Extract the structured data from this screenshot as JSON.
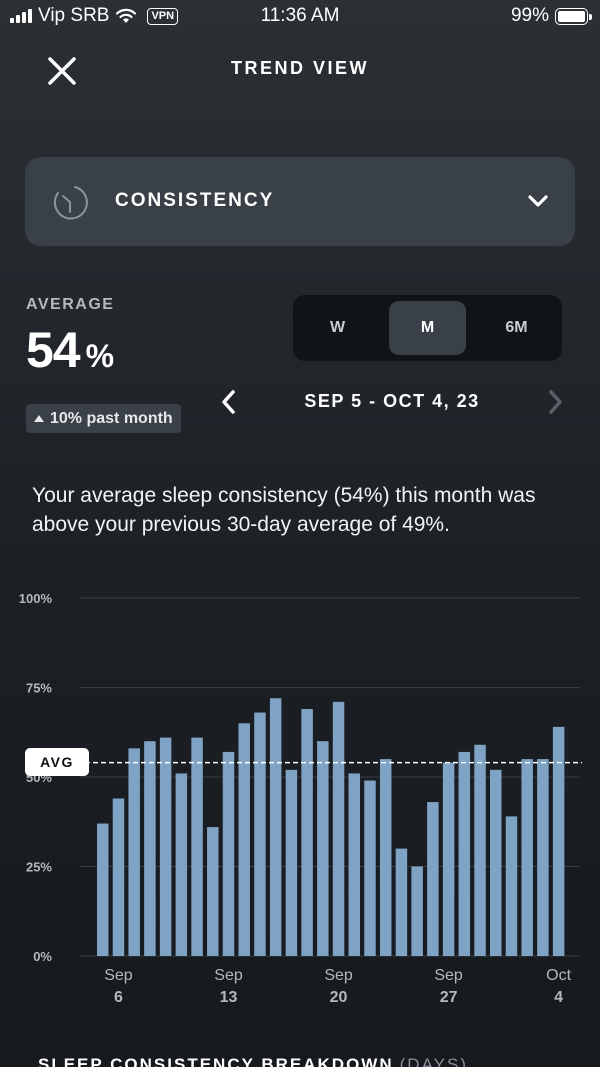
{
  "status_bar": {
    "carrier": "Vip SRB",
    "vpn": "VPN",
    "time": "11:36 AM",
    "battery": "99%",
    "icons": [
      "signal-icon",
      "wifi-icon",
      "battery-icon"
    ]
  },
  "header": {
    "title": "TREND VIEW",
    "close_icon": "close-icon"
  },
  "metric_selector": {
    "label": "CONSISTENCY",
    "icon": "consistency-clock-icon",
    "chevron": "chevron-down-icon"
  },
  "average": {
    "label": "AVERAGE",
    "value": "54",
    "unit": "%",
    "trend": "10% past month",
    "trend_direction": "up"
  },
  "period_toggle": {
    "options": [
      "W",
      "M",
      "6M"
    ],
    "selected": "M"
  },
  "date_range": {
    "label": "SEP 5 - OCT 4, 23"
  },
  "summary": {
    "text": "Your average sleep consistency (54%) this month was above your previous 30-day average of 49%."
  },
  "chart_data": {
    "type": "bar",
    "bar_color": "#7ea3c4",
    "avg_line_color": "#ffffff",
    "ylim": [
      0,
      100
    ],
    "y_ticks": [
      {
        "value": 100,
        "label": "100%"
      },
      {
        "value": 75,
        "label": "75%"
      },
      {
        "value": 50,
        "label": "50%"
      },
      {
        "value": 25,
        "label": "25%"
      },
      {
        "value": 0,
        "label": "0%"
      }
    ],
    "avg_value": 54,
    "avg_label": "AVG",
    "x_labels": [
      {
        "index": 1,
        "month": "Sep",
        "day": "6"
      },
      {
        "index": 8,
        "month": "Sep",
        "day": "13"
      },
      {
        "index": 15,
        "month": "Sep",
        "day": "20"
      },
      {
        "index": 22,
        "month": "Sep",
        "day": "27"
      },
      {
        "index": 29,
        "month": "Oct",
        "day": "4"
      }
    ],
    "values": [
      37,
      44,
      58,
      60,
      61,
      51,
      61,
      36,
      57,
      65,
      68,
      72,
      52,
      69,
      60,
      71,
      51,
      49,
      55,
      30,
      25,
      43,
      54,
      57,
      59,
      52,
      39,
      55,
      55,
      64
    ]
  },
  "breakdown": {
    "title": "SLEEP CONSISTENCY BREAKDOWN",
    "subtitle": "(DAYS)"
  }
}
